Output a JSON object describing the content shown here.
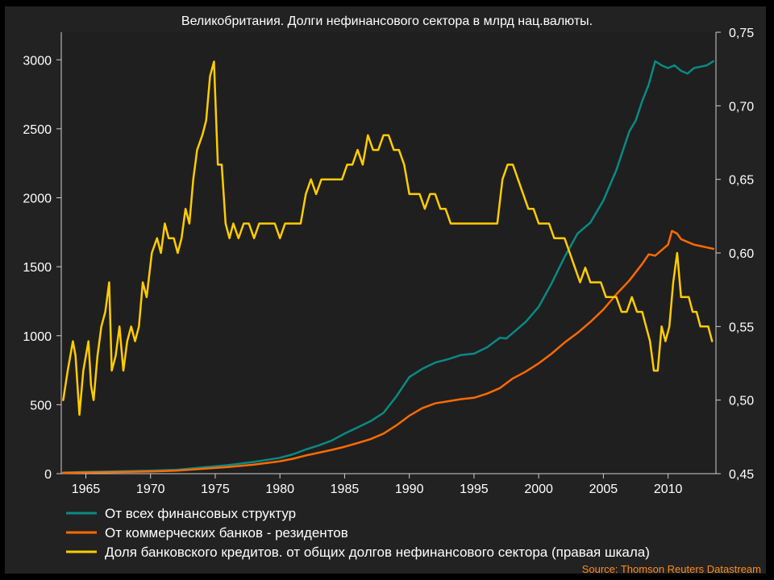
{
  "chart_data": {
    "type": "line",
    "title": "Великобритания. Долги нефинансового сектора в млрд нац.валюты.",
    "source": "Source: Thomson Reuters Datastream",
    "x_ticks": [
      "1965",
      "1970",
      "1975",
      "1980",
      "1985",
      "1990",
      "1995",
      "2000",
      "2005",
      "2010"
    ],
    "xlim": [
      1963.1,
      2013.7
    ],
    "y_left": {
      "ticks": [
        "0",
        "500",
        "1000",
        "1500",
        "2000",
        "2500",
        "3000"
      ],
      "lim": [
        0,
        3200
      ]
    },
    "y_right": {
      "ticks": [
        "0,45",
        "0,50",
        "0,55",
        "0,60",
        "0,65",
        "0,70",
        "0,75"
      ],
      "lim": [
        0.45,
        0.75
      ]
    },
    "grid": false,
    "legend_position": "bottom-left",
    "series": [
      {
        "name": "От всех финансовых структур",
        "axis": "left",
        "color": "#0a8a84",
        "points": [
          [
            1963.25,
            8
          ],
          [
            1965,
            12
          ],
          [
            1970,
            22
          ],
          [
            1972,
            28
          ],
          [
            1974,
            45
          ],
          [
            1976,
            62
          ],
          [
            1978,
            85
          ],
          [
            1980,
            115
          ],
          [
            1981,
            140
          ],
          [
            1982,
            175
          ],
          [
            1983,
            205
          ],
          [
            1984,
            240
          ],
          [
            1985,
            290
          ],
          [
            1986,
            335
          ],
          [
            1987,
            380
          ],
          [
            1988,
            440
          ],
          [
            1989,
            560
          ],
          [
            1990,
            700
          ],
          [
            1991,
            760
          ],
          [
            1992,
            805
          ],
          [
            1993,
            830
          ],
          [
            1994,
            860
          ],
          [
            1995,
            870
          ],
          [
            1996,
            915
          ],
          [
            1997,
            985
          ],
          [
            1997.5,
            980
          ],
          [
            1998,
            1020
          ],
          [
            1999,
            1100
          ],
          [
            2000,
            1210
          ],
          [
            2001,
            1380
          ],
          [
            2002,
            1570
          ],
          [
            2003,
            1740
          ],
          [
            2004,
            1820
          ],
          [
            2005,
            1980
          ],
          [
            2006,
            2200
          ],
          [
            2007,
            2480
          ],
          [
            2007.5,
            2560
          ],
          [
            2008,
            2700
          ],
          [
            2008.5,
            2820
          ],
          [
            2009,
            2990
          ],
          [
            2009.5,
            2960
          ],
          [
            2010,
            2940
          ],
          [
            2010.5,
            2960
          ],
          [
            2011,
            2920
          ],
          [
            2011.5,
            2900
          ],
          [
            2012,
            2940
          ],
          [
            2012.5,
            2950
          ],
          [
            2013,
            2960
          ],
          [
            2013.5,
            2990
          ]
        ]
      },
      {
        "name": "От коммерческих банков - резидентов",
        "axis": "left",
        "color": "#ff6a00",
        "points": [
          [
            1963.25,
            6
          ],
          [
            1965,
            9
          ],
          [
            1970,
            16
          ],
          [
            1972,
            22
          ],
          [
            1974,
            35
          ],
          [
            1976,
            48
          ],
          [
            1978,
            66
          ],
          [
            1980,
            90
          ],
          [
            1981,
            108
          ],
          [
            1982,
            132
          ],
          [
            1983,
            152
          ],
          [
            1984,
            172
          ],
          [
            1985,
            195
          ],
          [
            1986,
            222
          ],
          [
            1987,
            250
          ],
          [
            1988,
            290
          ],
          [
            1989,
            350
          ],
          [
            1990,
            420
          ],
          [
            1991,
            475
          ],
          [
            1992,
            510
          ],
          [
            1993,
            525
          ],
          [
            1994,
            540
          ],
          [
            1995,
            550
          ],
          [
            1996,
            580
          ],
          [
            1997,
            620
          ],
          [
            1998,
            690
          ],
          [
            1999,
            740
          ],
          [
            2000,
            800
          ],
          [
            2001,
            870
          ],
          [
            2002,
            950
          ],
          [
            2003,
            1020
          ],
          [
            2004,
            1100
          ],
          [
            2005,
            1190
          ],
          [
            2006,
            1300
          ],
          [
            2007,
            1400
          ],
          [
            2008,
            1520
          ],
          [
            2008.5,
            1590
          ],
          [
            2009,
            1580
          ],
          [
            2009.5,
            1620
          ],
          [
            2010,
            1660
          ],
          [
            2010.3,
            1760
          ],
          [
            2010.7,
            1740
          ],
          [
            2011,
            1700
          ],
          [
            2011.5,
            1680
          ],
          [
            2012,
            1660
          ],
          [
            2012.5,
            1650
          ],
          [
            2013,
            1640
          ],
          [
            2013.5,
            1630
          ]
        ]
      },
      {
        "name": "Доля банковского кредитов. от общих долгов нефинансового сектора (правая шкала)",
        "axis": "right",
        "color": "#ffcc00",
        "points": [
          [
            1963.25,
            0.5
          ],
          [
            1963.6,
            0.52
          ],
          [
            1964,
            0.54
          ],
          [
            1964.2,
            0.53
          ],
          [
            1964.5,
            0.49
          ],
          [
            1964.8,
            0.52
          ],
          [
            1965.2,
            0.54
          ],
          [
            1965.4,
            0.51
          ],
          [
            1965.6,
            0.5
          ],
          [
            1965.9,
            0.53
          ],
          [
            1966.2,
            0.55
          ],
          [
            1966.5,
            0.56
          ],
          [
            1966.8,
            0.58
          ],
          [
            1967,
            0.52
          ],
          [
            1967.3,
            0.53
          ],
          [
            1967.6,
            0.55
          ],
          [
            1967.9,
            0.52
          ],
          [
            1968.2,
            0.54
          ],
          [
            1968.5,
            0.55
          ],
          [
            1968.8,
            0.54
          ],
          [
            1969.1,
            0.55
          ],
          [
            1969.4,
            0.58
          ],
          [
            1969.7,
            0.57
          ],
          [
            1970.1,
            0.6
          ],
          [
            1970.5,
            0.61
          ],
          [
            1970.8,
            0.6
          ],
          [
            1971.1,
            0.62
          ],
          [
            1971.4,
            0.61
          ],
          [
            1971.8,
            0.61
          ],
          [
            1972.1,
            0.6
          ],
          [
            1972.4,
            0.61
          ],
          [
            1972.7,
            0.63
          ],
          [
            1973,
            0.62
          ],
          [
            1973.3,
            0.65
          ],
          [
            1973.6,
            0.67
          ],
          [
            1974,
            0.68
          ],
          [
            1974.3,
            0.69
          ],
          [
            1974.6,
            0.72
          ],
          [
            1974.9,
            0.73
          ],
          [
            1975.2,
            0.66
          ],
          [
            1975.5,
            0.66
          ],
          [
            1975.8,
            0.62
          ],
          [
            1976.1,
            0.61
          ],
          [
            1976.4,
            0.62
          ],
          [
            1976.8,
            0.61
          ],
          [
            1977.2,
            0.62
          ],
          [
            1977.6,
            0.62
          ],
          [
            1978,
            0.61
          ],
          [
            1978.4,
            0.62
          ],
          [
            1978.8,
            0.62
          ],
          [
            1979.2,
            0.62
          ],
          [
            1979.6,
            0.62
          ],
          [
            1980,
            0.61
          ],
          [
            1980.4,
            0.62
          ],
          [
            1980.8,
            0.62
          ],
          [
            1981.2,
            0.62
          ],
          [
            1981.6,
            0.62
          ],
          [
            1982,
            0.64
          ],
          [
            1982.4,
            0.65
          ],
          [
            1982.8,
            0.64
          ],
          [
            1983.2,
            0.65
          ],
          [
            1983.6,
            0.65
          ],
          [
            1984,
            0.65
          ],
          [
            1984.4,
            0.65
          ],
          [
            1984.8,
            0.65
          ],
          [
            1985.2,
            0.66
          ],
          [
            1985.6,
            0.66
          ],
          [
            1986,
            0.67
          ],
          [
            1986.4,
            0.66
          ],
          [
            1986.8,
            0.68
          ],
          [
            1987.2,
            0.67
          ],
          [
            1987.6,
            0.67
          ],
          [
            1988,
            0.68
          ],
          [
            1988.4,
            0.68
          ],
          [
            1988.8,
            0.67
          ],
          [
            1989.2,
            0.67
          ],
          [
            1989.6,
            0.66
          ],
          [
            1990,
            0.64
          ],
          [
            1990.4,
            0.64
          ],
          [
            1990.8,
            0.64
          ],
          [
            1991.2,
            0.63
          ],
          [
            1991.6,
            0.64
          ],
          [
            1992,
            0.64
          ],
          [
            1992.4,
            0.63
          ],
          [
            1992.8,
            0.63
          ],
          [
            1993.2,
            0.62
          ],
          [
            1993.6,
            0.62
          ],
          [
            1994,
            0.62
          ],
          [
            1994.4,
            0.62
          ],
          [
            1994.8,
            0.62
          ],
          [
            1995.2,
            0.62
          ],
          [
            1995.6,
            0.62
          ],
          [
            1996,
            0.62
          ],
          [
            1996.4,
            0.62
          ],
          [
            1996.8,
            0.62
          ],
          [
            1997.2,
            0.65
          ],
          [
            1997.6,
            0.66
          ],
          [
            1998,
            0.66
          ],
          [
            1998.4,
            0.65
          ],
          [
            1998.8,
            0.64
          ],
          [
            1999.2,
            0.63
          ],
          [
            1999.6,
            0.63
          ],
          [
            2000,
            0.62
          ],
          [
            2000.4,
            0.62
          ],
          [
            2000.8,
            0.62
          ],
          [
            2001.2,
            0.61
          ],
          [
            2001.6,
            0.61
          ],
          [
            2002,
            0.61
          ],
          [
            2002.4,
            0.6
          ],
          [
            2002.8,
            0.59
          ],
          [
            2003.2,
            0.58
          ],
          [
            2003.6,
            0.59
          ],
          [
            2004,
            0.58
          ],
          [
            2004.4,
            0.58
          ],
          [
            2004.8,
            0.58
          ],
          [
            2005.2,
            0.57
          ],
          [
            2005.6,
            0.57
          ],
          [
            2006,
            0.57
          ],
          [
            2006.4,
            0.56
          ],
          [
            2006.8,
            0.56
          ],
          [
            2007.2,
            0.57
          ],
          [
            2007.6,
            0.56
          ],
          [
            2008,
            0.56
          ],
          [
            2008.3,
            0.55
          ],
          [
            2008.6,
            0.54
          ],
          [
            2008.9,
            0.52
          ],
          [
            2009.2,
            0.52
          ],
          [
            2009.5,
            0.55
          ],
          [
            2009.8,
            0.54
          ],
          [
            2010.1,
            0.55
          ],
          [
            2010.4,
            0.58
          ],
          [
            2010.7,
            0.6
          ],
          [
            2011,
            0.57
          ],
          [
            2011.3,
            0.57
          ],
          [
            2011.6,
            0.57
          ],
          [
            2011.9,
            0.56
          ],
          [
            2012.2,
            0.56
          ],
          [
            2012.5,
            0.55
          ],
          [
            2012.8,
            0.55
          ],
          [
            2013.1,
            0.55
          ],
          [
            2013.4,
            0.54
          ]
        ]
      }
    ]
  }
}
